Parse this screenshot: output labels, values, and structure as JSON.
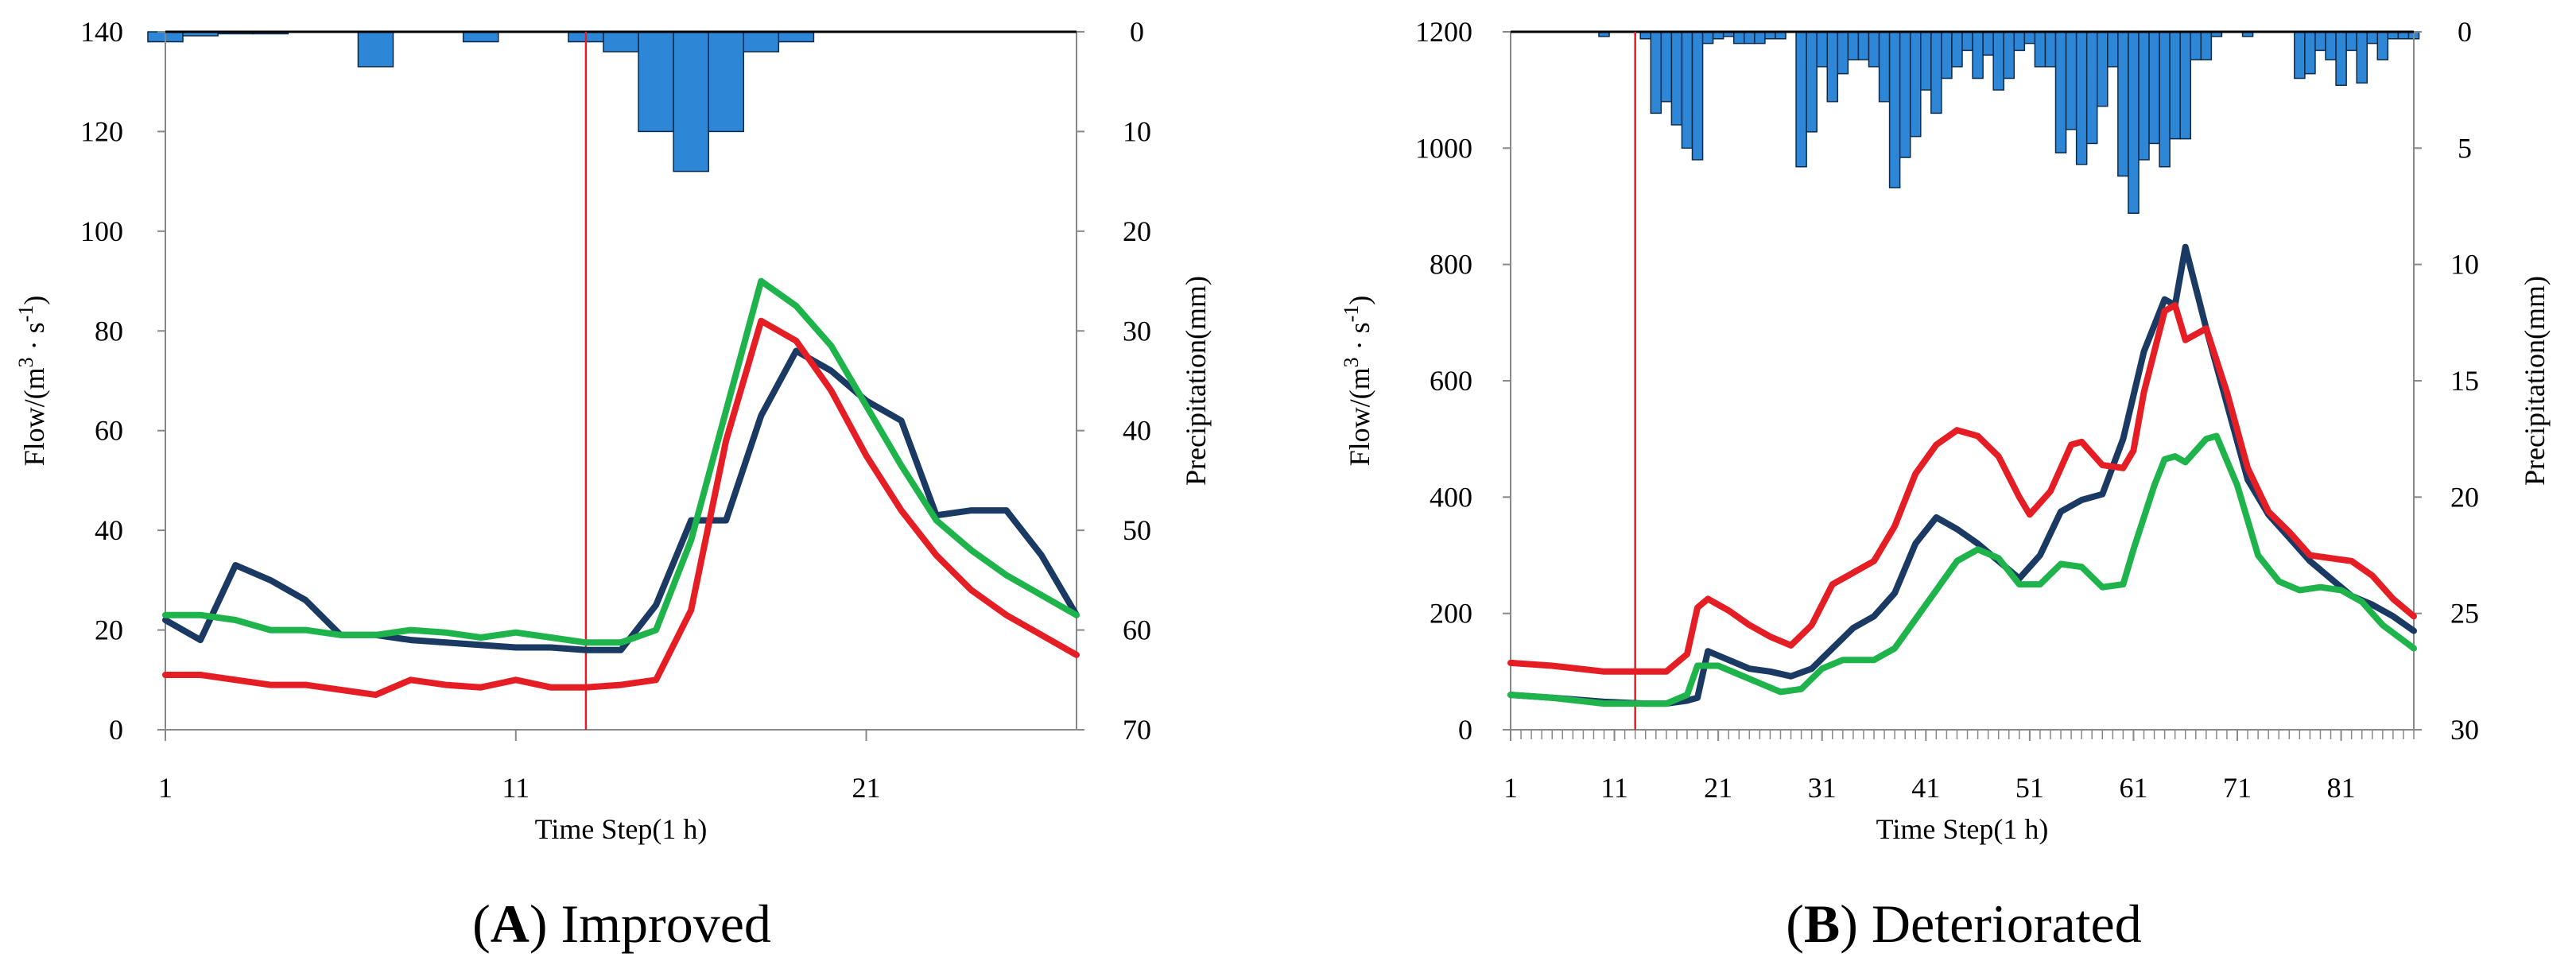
{
  "colors": {
    "observed": "#1a3a63",
    "sim_red": "#e41e24",
    "sim_green": "#1eb44b",
    "precip": "#2e86d6",
    "marker": "#e41e24",
    "axis": "#888888"
  },
  "chart_data": [
    {
      "id": "A",
      "type": "line",
      "caption_letter": "A",
      "caption_text": " Improved",
      "xlabel": "Time Step(1 h)",
      "ylabel_main": "Flow/(m",
      "ylabel_sup1": "3",
      "ylabel_mid": " · s",
      "ylabel_sup2": "-1",
      "ylabel_end": ")",
      "y2label": "Precipitation(mm)",
      "xlim": [
        1,
        27
      ],
      "ylim": [
        0,
        140
      ],
      "y2lim": [
        70,
        0
      ],
      "yticks": [
        0,
        20,
        40,
        60,
        80,
        100,
        120,
        140
      ],
      "y2ticks": [
        0,
        10,
        20,
        30,
        40,
        50,
        60,
        70
      ],
      "xticks": [
        1,
        11,
        21
      ],
      "minor_xticks": false,
      "marker_x": 13,
      "x": [
        1,
        2,
        3,
        4,
        5,
        6,
        7,
        8,
        9,
        10,
        11,
        12,
        13,
        14,
        15,
        16,
        17,
        18,
        19,
        20,
        21,
        22,
        23,
        24,
        25,
        26,
        27
      ],
      "series": [
        {
          "name": "observed",
          "color_key": "observed",
          "values": [
            22,
            18,
            33,
            30,
            26,
            19,
            19,
            18,
            17.5,
            17,
            16.5,
            16.5,
            16,
            16,
            25,
            42,
            42,
            63,
            76,
            72,
            66,
            62,
            43,
            44,
            44,
            35,
            23
          ]
        },
        {
          "name": "simulated-red",
          "color_key": "sim_red",
          "values": [
            11,
            11,
            10,
            9,
            9,
            8,
            7,
            10,
            9,
            8.5,
            10,
            8.5,
            8.5,
            9,
            10,
            24,
            58,
            82,
            78,
            68,
            55,
            44,
            35,
            28,
            23,
            19,
            15
          ]
        },
        {
          "name": "simulated-green",
          "color_key": "sim_green",
          "values": [
            23,
            23,
            22,
            20,
            20,
            19,
            19,
            20,
            19.5,
            18.5,
            19.5,
            18.5,
            17.5,
            17.5,
            20,
            38,
            64,
            90,
            85,
            77,
            65,
            53,
            42,
            36,
            31,
            27,
            23
          ]
        }
      ],
      "precip": [
        1,
        0.4,
        0.2,
        0.2,
        0,
        0,
        3.5,
        0,
        0,
        1,
        0,
        0,
        1,
        2,
        10,
        14,
        10,
        2,
        1,
        0,
        0,
        0,
        0,
        0,
        0,
        0,
        0
      ]
    },
    {
      "id": "B",
      "type": "line",
      "caption_letter": "B",
      "caption_text": " Deteriorated",
      "xlabel": "Time Step(1 h)",
      "ylabel_main": "Flow/(m",
      "ylabel_sup1": "3",
      "ylabel_mid": " · s",
      "ylabel_sup2": "-1",
      "ylabel_end": ")",
      "y2label": "Precipitation(mm)",
      "xlim": [
        1,
        88
      ],
      "ylim": [
        0,
        1200
      ],
      "y2lim": [
        30,
        0
      ],
      "yticks": [
        0,
        200,
        400,
        600,
        800,
        1000,
        1200
      ],
      "y2ticks": [
        0,
        5,
        10,
        15,
        20,
        25,
        30
      ],
      "xticks": [
        1,
        11,
        21,
        31,
        41,
        51,
        61,
        71,
        81
      ],
      "minor_xticks": true,
      "marker_x": 13,
      "series": [
        {
          "name": "observed",
          "color_key": "observed",
          "points": [
            [
              1,
              60
            ],
            [
              5,
              55
            ],
            [
              10,
              48
            ],
            [
              14,
              45
            ],
            [
              16,
              45
            ],
            [
              18,
              50
            ],
            [
              19,
              55
            ],
            [
              20,
              135
            ],
            [
              22,
              120
            ],
            [
              24,
              105
            ],
            [
              26,
              100
            ],
            [
              28,
              92
            ],
            [
              30,
              105
            ],
            [
              32,
              140
            ],
            [
              34,
              175
            ],
            [
              36,
              195
            ],
            [
              38,
              235
            ],
            [
              40,
              320
            ],
            [
              42,
              365
            ],
            [
              44,
              345
            ],
            [
              46,
              320
            ],
            [
              48,
              290
            ],
            [
              50,
              260
            ],
            [
              52,
              300
            ],
            [
              54,
              375
            ],
            [
              56,
              395
            ],
            [
              58,
              405
            ],
            [
              60,
              500
            ],
            [
              62,
              650
            ],
            [
              64,
              740
            ],
            [
              65,
              730
            ],
            [
              66,
              830
            ],
            [
              68,
              690
            ],
            [
              70,
              560
            ],
            [
              72,
              430
            ],
            [
              74,
              370
            ],
            [
              76,
              330
            ],
            [
              78,
              290
            ],
            [
              80,
              260
            ],
            [
              82,
              230
            ],
            [
              84,
              215
            ],
            [
              86,
              195
            ],
            [
              88,
              170
            ]
          ]
        },
        {
          "name": "simulated-red",
          "color_key": "sim_red",
          "points": [
            [
              1,
              115
            ],
            [
              5,
              110
            ],
            [
              10,
              100
            ],
            [
              14,
              100
            ],
            [
              16,
              100
            ],
            [
              18,
              130
            ],
            [
              19,
              210
            ],
            [
              20,
              225
            ],
            [
              22,
              205
            ],
            [
              24,
              180
            ],
            [
              26,
              160
            ],
            [
              28,
              145
            ],
            [
              30,
              180
            ],
            [
              32,
              250
            ],
            [
              34,
              270
            ],
            [
              36,
              290
            ],
            [
              38,
              350
            ],
            [
              40,
              440
            ],
            [
              42,
              490
            ],
            [
              44,
              515
            ],
            [
              46,
              505
            ],
            [
              48,
              470
            ],
            [
              50,
              400
            ],
            [
              51,
              370
            ],
            [
              53,
              410
            ],
            [
              55,
              490
            ],
            [
              56,
              495
            ],
            [
              58,
              455
            ],
            [
              60,
              450
            ],
            [
              61,
              480
            ],
            [
              62,
              580
            ],
            [
              64,
              720
            ],
            [
              65,
              730
            ],
            [
              66,
              670
            ],
            [
              68,
              690
            ],
            [
              70,
              580
            ],
            [
              72,
              450
            ],
            [
              74,
              375
            ],
            [
              76,
              340
            ],
            [
              78,
              300
            ],
            [
              80,
              295
            ],
            [
              82,
              290
            ],
            [
              84,
              265
            ],
            [
              86,
              225
            ],
            [
              88,
              195
            ]
          ]
        },
        {
          "name": "simulated-green",
          "color_key": "sim_green",
          "points": [
            [
              1,
              60
            ],
            [
              5,
              55
            ],
            [
              10,
              45
            ],
            [
              14,
              45
            ],
            [
              16,
              45
            ],
            [
              18,
              60
            ],
            [
              19,
              110
            ],
            [
              21,
              110
            ],
            [
              23,
              95
            ],
            [
              25,
              80
            ],
            [
              27,
              65
            ],
            [
              29,
              70
            ],
            [
              31,
              105
            ],
            [
              33,
              120
            ],
            [
              36,
              120
            ],
            [
              38,
              140
            ],
            [
              40,
              190
            ],
            [
              42,
              240
            ],
            [
              44,
              290
            ],
            [
              46,
              310
            ],
            [
              48,
              295
            ],
            [
              50,
              250
            ],
            [
              52,
              250
            ],
            [
              54,
              285
            ],
            [
              56,
              280
            ],
            [
              58,
              245
            ],
            [
              60,
              250
            ],
            [
              61,
              310
            ],
            [
              63,
              420
            ],
            [
              64,
              465
            ],
            [
              65,
              470
            ],
            [
              66,
              460
            ],
            [
              68,
              500
            ],
            [
              69,
              505
            ],
            [
              71,
              420
            ],
            [
              73,
              300
            ],
            [
              75,
              255
            ],
            [
              77,
              240
            ],
            [
              79,
              245
            ],
            [
              81,
              240
            ],
            [
              83,
              220
            ],
            [
              85,
              180
            ],
            [
              88,
              140
            ]
          ]
        }
      ],
      "precip": [
        0,
        0,
        0,
        0,
        0,
        0,
        0,
        0,
        0,
        0.2,
        0,
        0,
        0,
        0.3,
        3.5,
        3,
        4,
        5,
        5.5,
        0.5,
        0.3,
        0.2,
        0.5,
        0.5,
        0.5,
        0.3,
        0.3,
        0,
        5.8,
        4.3,
        1.5,
        3,
        1.8,
        1.2,
        1.2,
        1.5,
        3,
        6.7,
        5.4,
        4.5,
        2.5,
        3.5,
        2,
        1.5,
        0.8,
        2,
        1,
        2.5,
        2,
        0.8,
        0.5,
        1.5,
        1.5,
        5.2,
        4.2,
        5.7,
        4.8,
        3.2,
        1.5,
        6.2,
        7.8,
        5.5,
        4.8,
        5.8,
        4.6,
        4.6,
        1.2,
        1.2,
        0.2,
        0,
        0,
        0.2,
        0,
        0,
        0,
        0,
        2,
        1.8,
        0.8,
        1.2,
        2.3,
        0.8,
        2.2,
        0.5,
        1.2,
        0.3,
        0.3,
        0.3
      ]
    }
  ]
}
